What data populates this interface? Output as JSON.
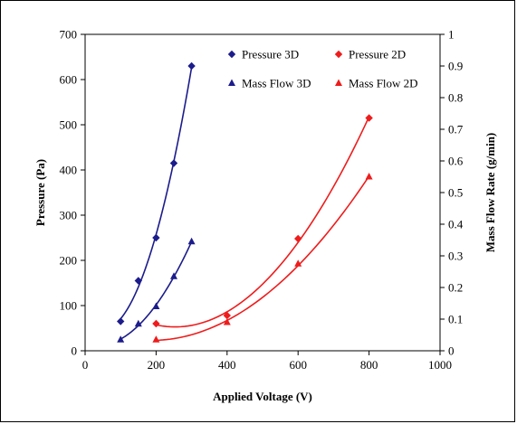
{
  "chart_data": {
    "type": "scatter",
    "title": "",
    "xlabel": "Applied Voltage (V)",
    "ylabel_left": "Pressure (Pa)",
    "ylabel_right": "Mass Flow Rate (g/min)",
    "xlim": [
      0,
      1000
    ],
    "xticks": [
      "0",
      "200",
      "400",
      "600",
      "800",
      "1000"
    ],
    "ylim_left": [
      0,
      700
    ],
    "yticks_left": [
      "0",
      "100",
      "200",
      "300",
      "400",
      "500",
      "600",
      "700"
    ],
    "ylim_right": [
      0,
      1
    ],
    "yticks_right": [
      "0",
      "0.1",
      "0.2",
      "0.3",
      "0.4",
      "0.5",
      "0.6",
      "0.7",
      "0.8",
      "0.9",
      "1"
    ],
    "grid": false,
    "legend_position": "top-right",
    "series": [
      {
        "name": "Pressure 3D",
        "axis": "left",
        "marker": "diamond",
        "color": "#1c1c8c",
        "x": [
          100,
          150,
          200,
          250,
          300
        ],
        "y": [
          65,
          155,
          250,
          415,
          630
        ]
      },
      {
        "name": "Pressure 2D",
        "axis": "left",
        "marker": "diamond",
        "color": "#ee1c1c",
        "x": [
          200,
          400,
          600,
          800
        ],
        "y": [
          60,
          78,
          248,
          515
        ]
      },
      {
        "name": "Mass Flow 3D",
        "axis": "right",
        "marker": "triangle",
        "color": "#1c1c8c",
        "x": [
          100,
          150,
          200,
          250,
          300
        ],
        "y": [
          0.035,
          0.085,
          0.14,
          0.235,
          0.345
        ]
      },
      {
        "name": "Mass Flow 2D",
        "axis": "right",
        "marker": "triangle",
        "color": "#ee1c1c",
        "x": [
          200,
          400,
          600,
          800
        ],
        "y": [
          0.035,
          0.09,
          0.275,
          0.55
        ]
      }
    ]
  }
}
